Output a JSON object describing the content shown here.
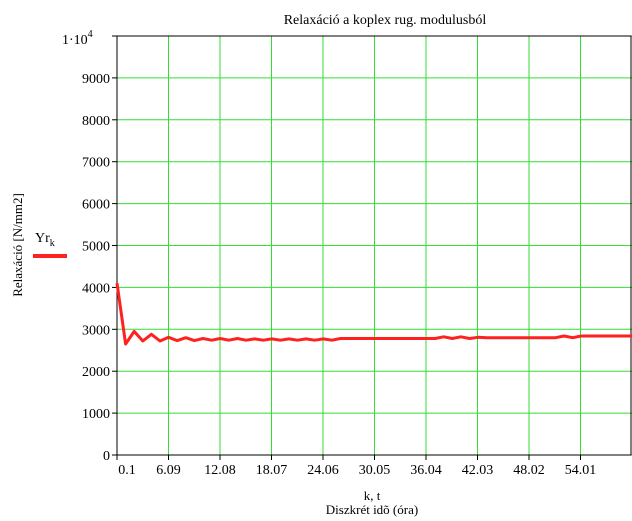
{
  "chart_data": {
    "type": "line",
    "title": "Relaxáció a koplex rug. modulusból",
    "xlabel_line1": "k, t",
    "xlabel_line2": "Diszkrét idõ  (óra)",
    "ylabel": "Relaxáció  [N/mm2]",
    "legend": {
      "name": "Yr",
      "subscript": "k",
      "placement": "left"
    },
    "grid": true,
    "xlim": [
      0.1,
      60.0
    ],
    "ylim": [
      0,
      10000
    ],
    "x_ticks": [
      "0.1",
      "6.09",
      "12.08",
      "18.07",
      "24.06",
      "30.05",
      "36.04",
      "42.03",
      "48.02",
      "54.01"
    ],
    "x_tick_values": [
      0.1,
      6.09,
      12.08,
      18.07,
      24.06,
      30.05,
      36.04,
      42.03,
      48.02,
      54.01
    ],
    "y_ticks": [
      "0",
      "1000",
      "2000",
      "3000",
      "4000",
      "5000",
      "6000",
      "7000",
      "8000",
      "9000"
    ],
    "y_tick_values": [
      0,
      1000,
      2000,
      3000,
      4000,
      5000,
      6000,
      7000,
      8000,
      9000
    ],
    "y_top_label": {
      "mantissa": "1·10",
      "exponent": "4"
    },
    "colors": {
      "line": "#ff2020",
      "grid": "#33dd33",
      "axis": "#000000"
    },
    "series": [
      {
        "name": "Yr_k",
        "x": [
          0.1,
          1.1,
          2.1,
          3.1,
          4.1,
          5.1,
          6.1,
          7.1,
          8.1,
          9.1,
          10.1,
          11.1,
          12.1,
          13.1,
          14.1,
          15.1,
          16.1,
          17.1,
          18.1,
          19.1,
          20.1,
          21.1,
          22.1,
          23.1,
          24.1,
          25.1,
          26.1,
          27.1,
          28.1,
          29.1,
          30.1,
          31.1,
          32.1,
          33.1,
          34.1,
          35.1,
          36.1,
          37.1,
          38.1,
          39.1,
          40.1,
          41.1,
          42.1,
          43.1,
          44.1,
          45.1,
          46.1,
          47.1,
          48.1,
          49.1,
          50.1,
          51.1,
          52.1,
          53.1,
          54.1,
          55.1,
          56.1,
          57.1,
          58.1,
          59.1,
          60.0
        ],
        "values": [
          4100,
          2650,
          2950,
          2720,
          2880,
          2720,
          2810,
          2730,
          2800,
          2730,
          2780,
          2740,
          2780,
          2740,
          2780,
          2740,
          2770,
          2740,
          2770,
          2740,
          2770,
          2740,
          2770,
          2740,
          2770,
          2740,
          2780,
          2780,
          2780,
          2780,
          2780,
          2780,
          2780,
          2780,
          2780,
          2780,
          2780,
          2780,
          2820,
          2780,
          2820,
          2780,
          2810,
          2800,
          2800,
          2800,
          2800,
          2800,
          2800,
          2800,
          2800,
          2800,
          2840,
          2800,
          2840,
          2840,
          2840,
          2840,
          2840,
          2840,
          2840
        ]
      }
    ]
  }
}
